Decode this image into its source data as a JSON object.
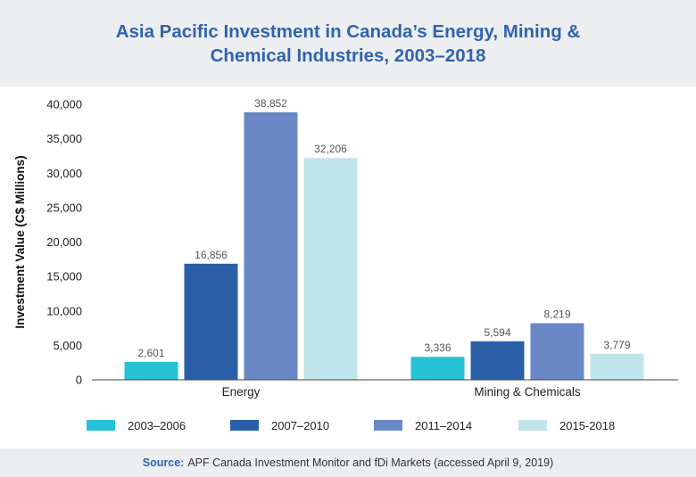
{
  "chart_data": {
    "type": "bar",
    "title_lines": [
      "Asia Pacific Investment in Canada’s Energy, Mining &",
      "Chemical Industries, 2003–2018"
    ],
    "ylabel": "Investment Value (C$ Millions)",
    "ylim": [
      0,
      40000
    ],
    "yticks": [
      0,
      5000,
      10000,
      15000,
      20000,
      25000,
      30000,
      35000,
      40000
    ],
    "ytick_labels": [
      "0",
      "5,000",
      "10,000",
      "15,000",
      "20,000",
      "25,000",
      "30,000",
      "35,000",
      "40,000"
    ],
    "categories": [
      "Energy",
      "Mining & Chemicals"
    ],
    "series": [
      {
        "name": "2003–2006",
        "color": "#27c1d6",
        "values": [
          2601,
          3336
        ],
        "labels": [
          "2,601",
          "3,336"
        ]
      },
      {
        "name": "2007–2010",
        "color": "#2a5fa8",
        "values": [
          16856,
          5594
        ],
        "labels": [
          "16,856",
          "5,594"
        ]
      },
      {
        "name": "2011–2014",
        "color": "#6a88c5",
        "values": [
          38852,
          8219
        ],
        "labels": [
          "38,852",
          "8,219"
        ]
      },
      {
        "name": "2015-2018",
        "color": "#bfe5ea",
        "values": [
          32206,
          3779
        ],
        "labels": [
          "32,206",
          "3,779"
        ]
      }
    ],
    "grid": false,
    "legend_position": "bottom"
  },
  "source": {
    "label": "Source:",
    "text": "APF Canada Investment Monitor and fDi Markets (accessed April 9, 2019)"
  }
}
